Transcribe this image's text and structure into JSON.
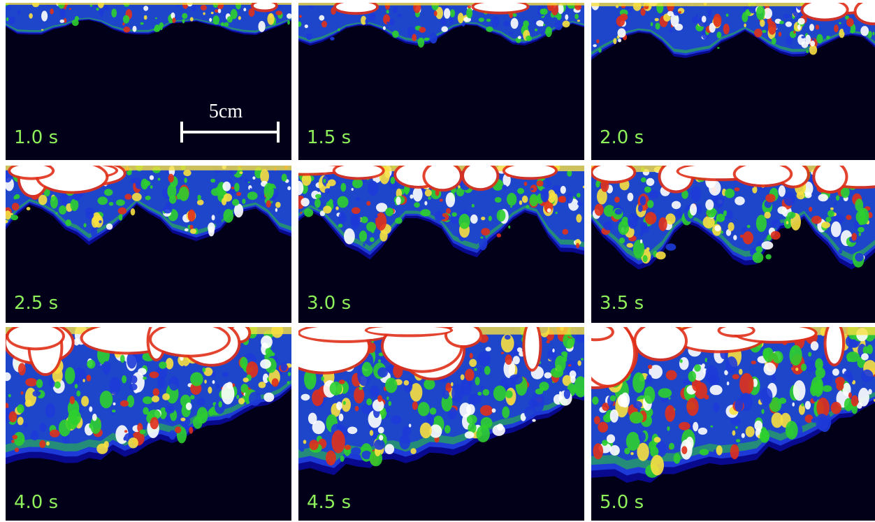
{
  "frames": [
    {
      "time": "1.0 s",
      "level": 0.12
    },
    {
      "time": "1.5 s",
      "level": 0.2
    },
    {
      "time": "2.0 s",
      "level": 0.32
    },
    {
      "time": "2.5 s",
      "level": 0.5
    },
    {
      "time": "3.0 s",
      "level": 0.62
    },
    {
      "time": "3.5 s",
      "level": 0.72
    },
    {
      "time": "4.0 s",
      "level": 0.82
    },
    {
      "time": "4.5 s",
      "level": 0.88
    },
    {
      "time": "5.0 s",
      "level": 0.95
    }
  ],
  "scale_bar": {
    "label": "5cm"
  },
  "colors": {
    "background": "#020018",
    "deep_blue": "#0a0a9a",
    "blue": "#1d3ad8",
    "green": "#2ecf2e",
    "red": "#e0301a",
    "yellow": "#f8e040",
    "white": "#ffffff",
    "label_green": "#8ef05a"
  }
}
